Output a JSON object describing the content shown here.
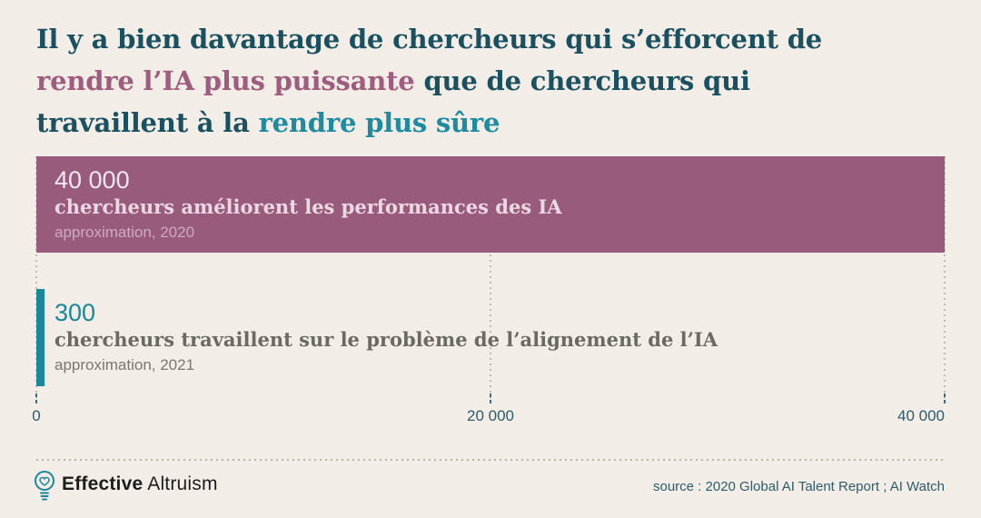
{
  "colors": {
    "background": "#f2eee7",
    "heading": "#1a505f",
    "power_accent": "#9f5c7e",
    "safety_accent": "#1e8ba0",
    "axis_text": "#2d5c6b",
    "footer_text": "#1e1d1b"
  },
  "title": {
    "part1": "Il y a bien davantage de chercheurs qui s’efforcent de",
    "part2": "rendre l’IA plus puissante",
    "part3": " que de chercheurs qui",
    "part4": "travaillent à la ",
    "part5": "rendre plus sûre"
  },
  "chart_data": {
    "type": "bar",
    "orientation": "horizontal",
    "title": "Il y a bien davantage de chercheurs qui s’efforcent de rendre l’IA plus puissante que de chercheurs qui travaillent à la rendre plus sûre",
    "categories": [
      "chercheurs améliorent les performances des IA",
      "chercheurs travaillent sur le problème de l’alignement de l’IA"
    ],
    "values": [
      40000,
      300
    ],
    "value_labels": [
      "40 000",
      "300"
    ],
    "notes": [
      "approximation, 2020",
      "approximation, 2021"
    ],
    "colors": [
      "#995b7b",
      "#1a879c"
    ],
    "xlim": [
      0,
      40000
    ],
    "x_ticks": [
      0,
      20000,
      40000
    ],
    "x_tick_labels": [
      "0",
      "20 000",
      "40 000"
    ],
    "gridlines": "vertical-dotted",
    "legend": "none"
  },
  "footer": {
    "brand_bold": "Effective",
    "brand_regular": "Altruism",
    "logo_icon": "lightbulb-heart-icon",
    "source": "source : 2020 Global AI Talent Report ; AI Watch"
  }
}
